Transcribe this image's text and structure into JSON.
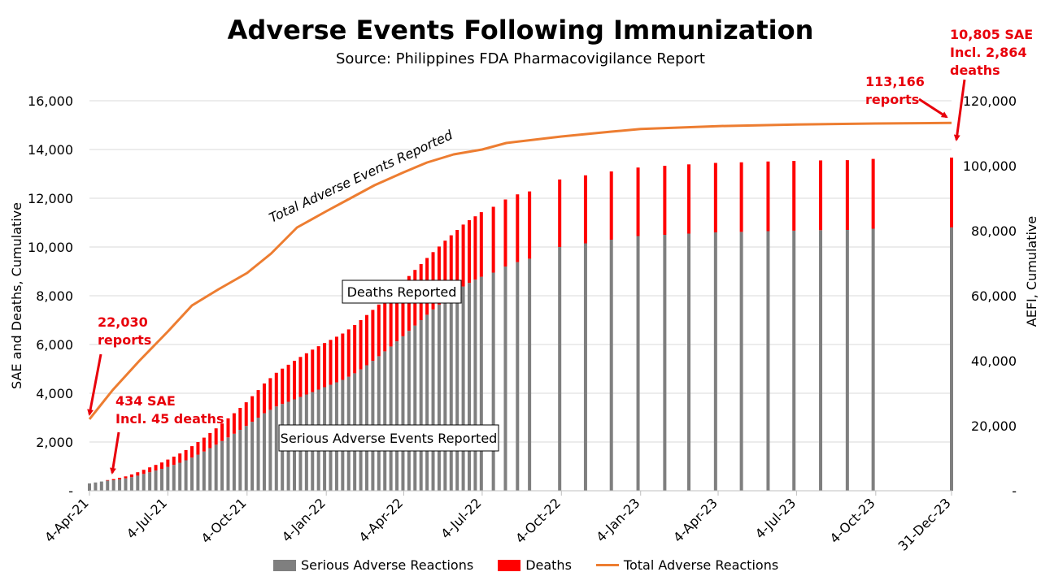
{
  "chart_data": {
    "type": "bar+line",
    "title": "Adverse Events Following Immunization",
    "subtitle": "Source: Philippines FDA Pharmacovigilance Report",
    "ylabel_left": "SAE and Deaths, Cumulative",
    "ylabel_right": "AEFI, Cumulative",
    "ylim_left": [
      0,
      16000
    ],
    "ylim_right": [
      0,
      120000
    ],
    "yticks_left": [
      "-",
      "2,000",
      "4,000",
      "6,000",
      "8,000",
      "10,000",
      "12,000",
      "14,000",
      "16,000"
    ],
    "yticks_right": [
      "-",
      "20,000",
      "40,000",
      "60,000",
      "80,000",
      "100,000",
      "120,000"
    ],
    "xticks": [
      "4-Apr-21",
      "4-Jul-21",
      "4-Oct-21",
      "4-Jan-22",
      "4-Apr-22",
      "4-Jul-22",
      "4-Oct-22",
      "4-Jan-23",
      "4-Apr-23",
      "4-Jul-23",
      "4-Oct-23",
      "31-Dec-23"
    ],
    "grid": true,
    "legend_position": "bottom",
    "colors": {
      "sae": "#7f7f7f",
      "deaths": "#ff0000",
      "total": "#ed7d31",
      "annot": "#e8000b"
    },
    "series": [
      {
        "name": "Serious Adverse Reactions",
        "kind": "bar",
        "values": [
          300,
          340,
          380,
          420,
          434,
          470,
          510,
          560,
          620,
          690,
          760,
          830,
          900,
          980,
          1060,
          1150,
          1250,
          1360,
          1480,
          1610,
          1750,
          1890,
          2040,
          2190,
          2340,
          2500,
          2660,
          2830,
          3000,
          3180,
          3320,
          3460,
          3560,
          3650,
          3750,
          3850,
          3950,
          4050,
          4150,
          4250,
          4350,
          4450,
          4550,
          4680,
          4820,
          4980,
          5150,
          5330,
          5520,
          5720,
          5920,
          6130,
          6340,
          6560,
          6780,
          7000,
          7220,
          7440,
          7640,
          7840,
          8020,
          8200,
          8380,
          8530,
          8660,
          8780,
          8950,
          9200,
          9380,
          9520,
          10000,
          10150,
          10300,
          10450,
          10500,
          10550,
          10600,
          10620,
          10650,
          10670,
          10690,
          10700,
          10750,
          10805
        ]
      },
      {
        "name": "Deaths",
        "kind": "bar-stacked",
        "values": [
          0,
          0,
          0,
          20,
          45,
          60,
          80,
          110,
          140,
          170,
          200,
          230,
          260,
          300,
          340,
          380,
          420,
          470,
          520,
          570,
          620,
          670,
          720,
          780,
          840,
          900,
          970,
          1050,
          1130,
          1220,
          1300,
          1380,
          1450,
          1520,
          1580,
          1640,
          1690,
          1740,
          1780,
          1810,
          1840,
          1870,
          1900,
          1940,
          1980,
          2020,
          2060,
          2090,
          2120,
          2150,
          2180,
          2200,
          2220,
          2250,
          2280,
          2300,
          2330,
          2350,
          2380,
          2420,
          2460,
          2500,
          2540,
          2570,
          2600,
          2650,
          2700,
          2750,
          2780,
          2760,
          2770,
          2790,
          2800,
          2810,
          2830,
          2840,
          2850,
          2855,
          2858,
          2860,
          2862,
          2863,
          2864,
          2864
        ]
      },
      {
        "name": "Total Adverse Reactions",
        "kind": "line-right-axis"
      }
    ],
    "total_line": {
      "x": [
        "4-Apr-21",
        "1-May-21",
        "1-Jun-21",
        "4-Jul-21",
        "1-Aug-21",
        "1-Sep-21",
        "4-Oct-21",
        "1-Nov-21",
        "1-Dec-21",
        "4-Jan-22",
        "1-Feb-22",
        "1-Mar-22",
        "4-Apr-22",
        "1-May-22",
        "1-Jun-22",
        "4-Jul-22",
        "1-Aug-22",
        "4-Oct-22",
        "1-Dec-22",
        "4-Jan-23",
        "4-Apr-23",
        "4-Jul-23",
        "4-Oct-23",
        "31-Dec-23"
      ],
      "y": [
        22030,
        31000,
        40000,
        49000,
        57000,
        62000,
        67000,
        73000,
        81000,
        86000,
        90000,
        94000,
        98000,
        101000,
        103500,
        105000,
        107000,
        109000,
        110500,
        111300,
        112200,
        112700,
        113000,
        113166
      ]
    },
    "bar_dates": [
      "4-Apr-21",
      "11-Apr-21",
      "18-Apr-21",
      "25-Apr-21",
      "2-May-21",
      "9-May-21",
      "16-May-21",
      "23-May-21",
      "30-May-21",
      "6-Jun-21",
      "13-Jun-21",
      "20-Jun-21",
      "27-Jun-21",
      "4-Jul-21",
      "11-Jul-21",
      "18-Jul-21",
      "25-Jul-21",
      "1-Aug-21",
      "8-Aug-21",
      "15-Aug-21",
      "22-Aug-21",
      "29-Aug-21",
      "5-Sep-21",
      "12-Sep-21",
      "19-Sep-21",
      "26-Sep-21",
      "3-Oct-21",
      "10-Oct-21",
      "17-Oct-21",
      "24-Oct-21",
      "31-Oct-21",
      "7-Nov-21",
      "14-Nov-21",
      "21-Nov-21",
      "28-Nov-21",
      "5-Dec-21",
      "12-Dec-21",
      "19-Dec-21",
      "26-Dec-21",
      "2-Jan-22",
      "9-Jan-22",
      "16-Jan-22",
      "23-Jan-22",
      "30-Jan-22",
      "6-Feb-22",
      "13-Feb-22",
      "20-Feb-22",
      "27-Feb-22",
      "6-Mar-22",
      "13-Mar-22",
      "20-Mar-22",
      "27-Mar-22",
      "3-Apr-22",
      "10-Apr-22",
      "17-Apr-22",
      "24-Apr-22",
      "1-May-22",
      "8-May-22",
      "15-May-22",
      "22-May-22",
      "29-May-22",
      "5-Jun-22",
      "12-Jun-22",
      "19-Jun-22",
      "26-Jun-22",
      "3-Jul-22",
      "17-Jul-22",
      "31-Jul-22",
      "14-Aug-22",
      "28-Aug-22",
      "2-Oct-22",
      "1-Nov-22",
      "1-Dec-22",
      "1-Jan-23",
      "1-Feb-23",
      "1-Mar-23",
      "1-Apr-23",
      "1-May-23",
      "1-Jun-23",
      "1-Jul-23",
      "1-Aug-23",
      "1-Sep-23",
      "1-Oct-23",
      "31-Dec-23"
    ],
    "annotations": [
      {
        "lines": [
          "10,805 SAE",
          "Incl. 2,864",
          "deaths"
        ]
      },
      {
        "lines": [
          "113,166",
          "reports"
        ]
      },
      {
        "lines": [
          "22,030",
          "reports"
        ]
      },
      {
        "lines": [
          "434 SAE",
          "Incl. 45 deaths"
        ]
      }
    ],
    "boxed_labels": [
      "Deaths Reported",
      "Serious Adverse Events Reported"
    ],
    "line_label": "Total Adverse Events Reported"
  }
}
